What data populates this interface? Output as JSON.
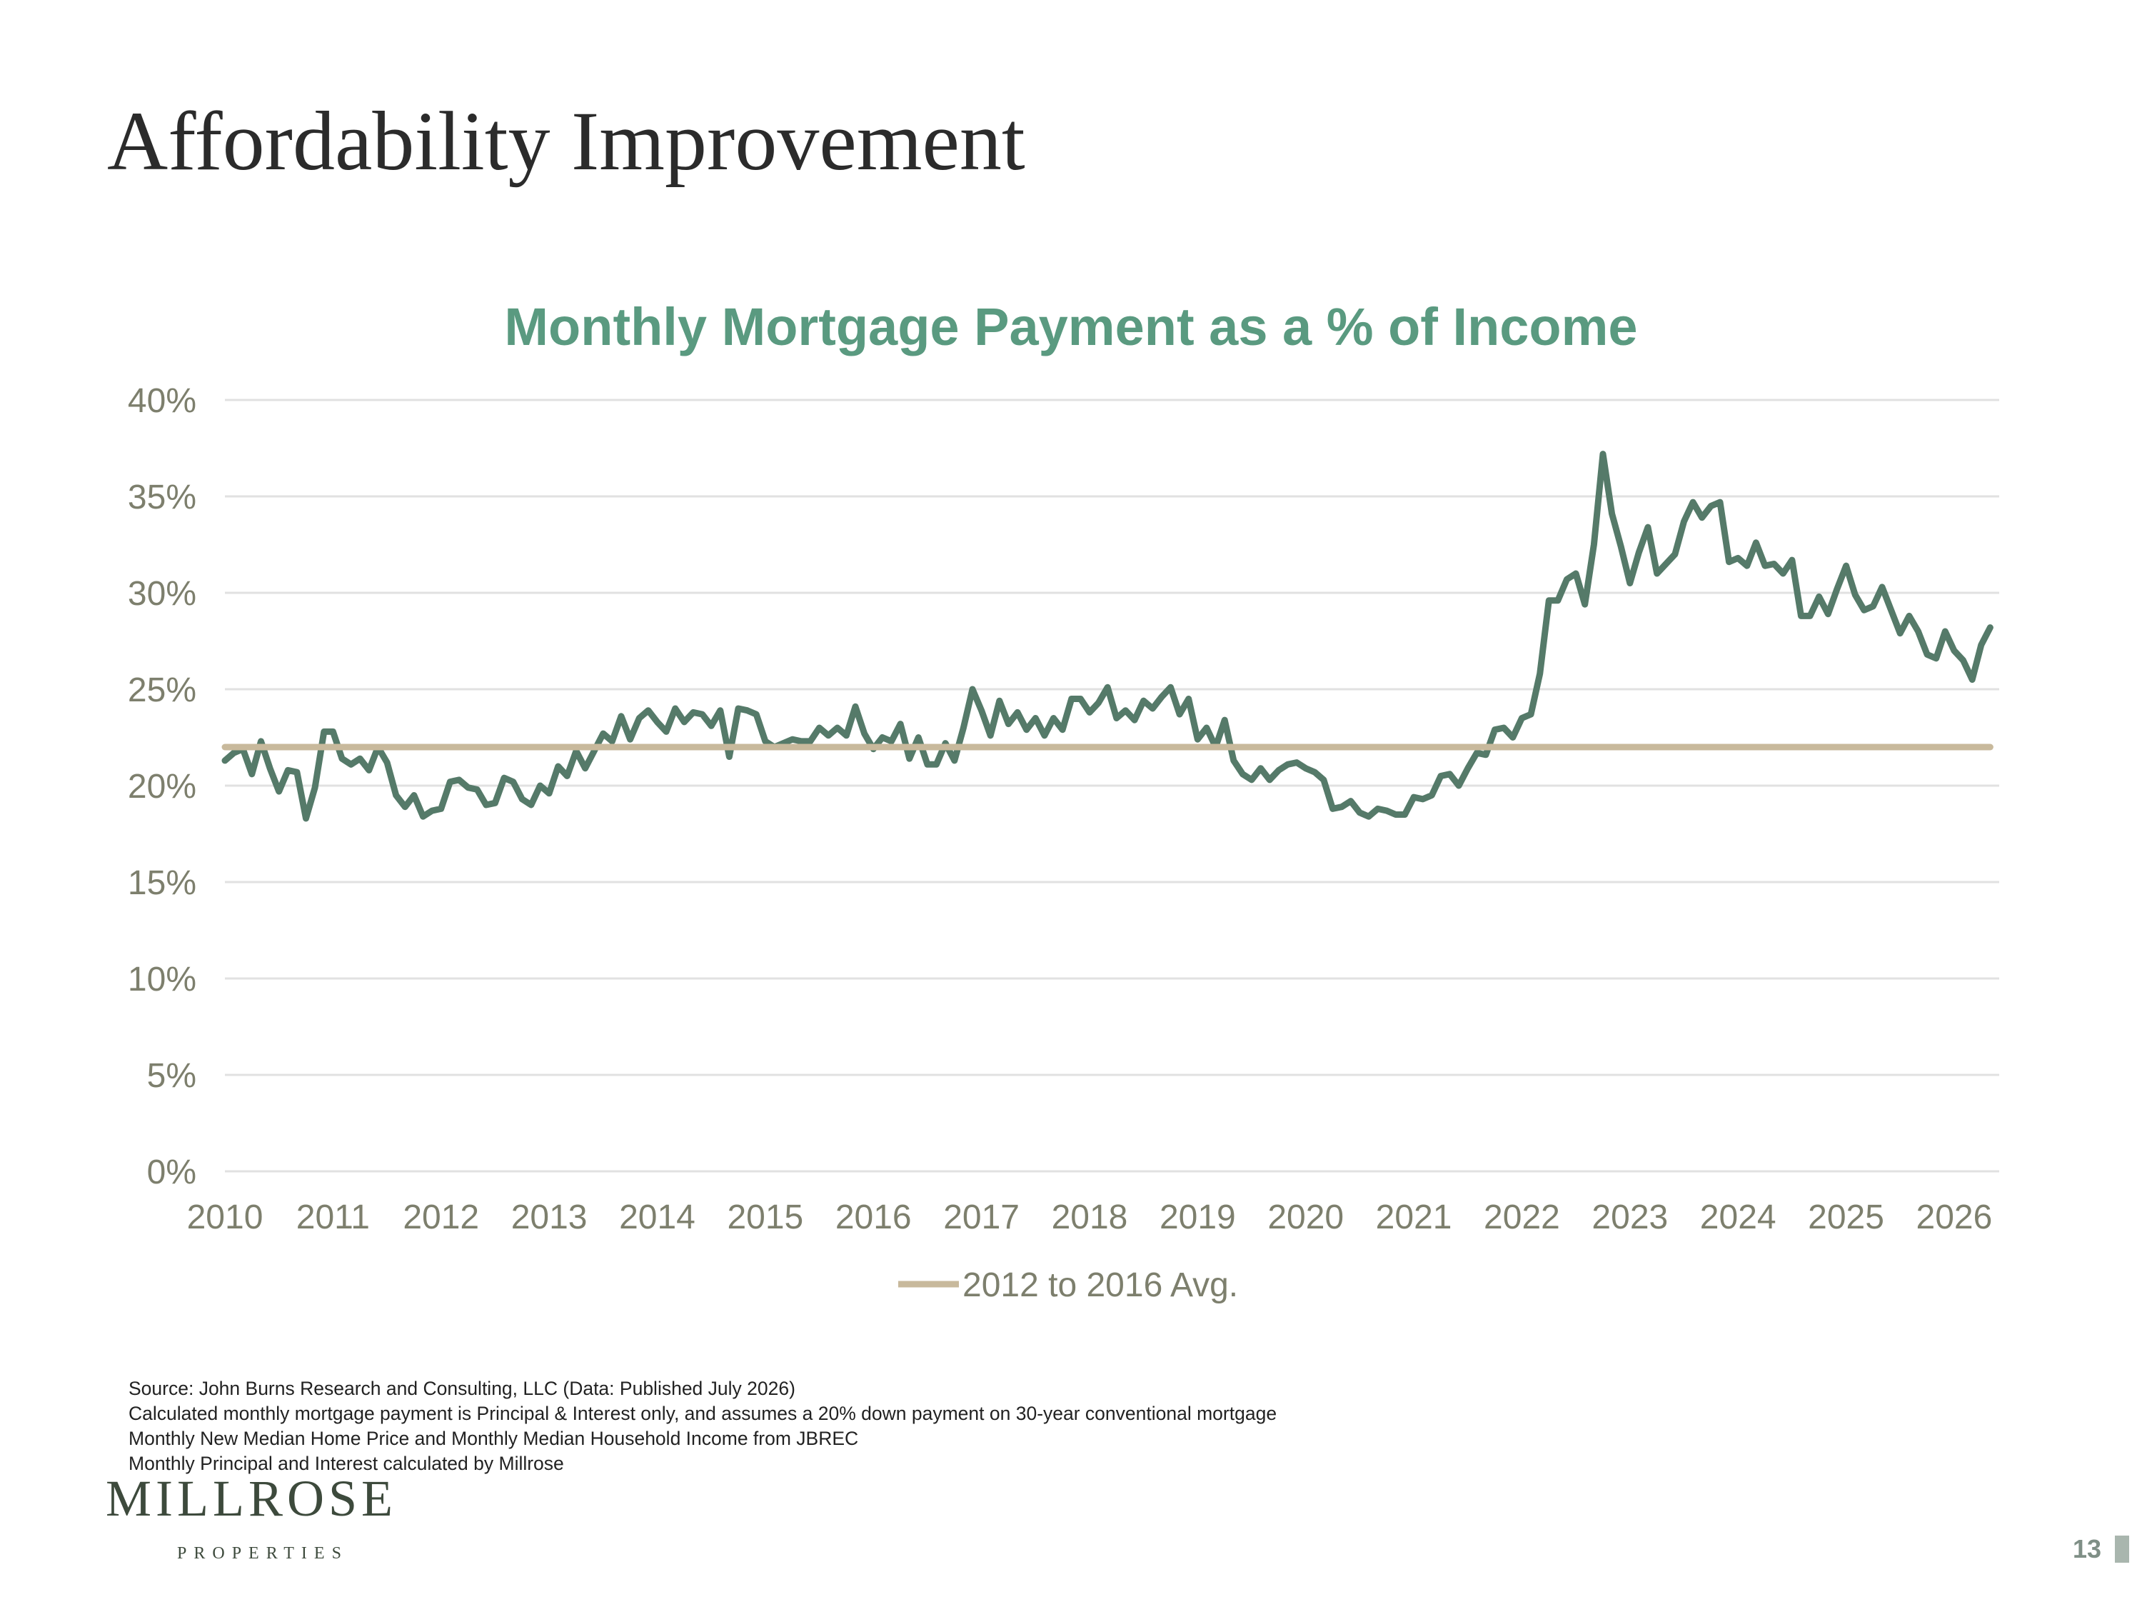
{
  "slide": {
    "title": "Affordability Improvement",
    "page_number": "13"
  },
  "notes": [
    "Source: John Burns Research and Consulting, LLC (Data: Published July 2026)",
    "Calculated monthly mortgage payment is Principal & Interest only, and assumes a 20% down payment on 30-year conventional mortgage",
    "Monthly New Median Home Price and Monthly Median Household Income from JBREC",
    "Monthly Principal and Interest calculated by Millrose"
  ],
  "logo": {
    "main": "MILLROSE",
    "sub": "PROPERTIES"
  },
  "colors": {
    "series_line": "#557a69",
    "avg_line": "#c8b99c",
    "title": "#5a9a80",
    "gridline": "#e1e1e1",
    "axis_text": "#7d7f6d"
  },
  "chart_data": {
    "type": "line",
    "title": "Monthly Mortgage Payment as a % of Income",
    "xlabel": "",
    "ylabel": "",
    "ylim": [
      0,
      40
    ],
    "xlim": [
      "2010-01",
      "2026-06"
    ],
    "y_ticks": [
      "0%",
      "5%",
      "10%",
      "15%",
      "20%",
      "25%",
      "30%",
      "35%",
      "40%"
    ],
    "x_ticks": [
      "2010",
      "2011",
      "2012",
      "2013",
      "2014",
      "2015",
      "2016",
      "2017",
      "2018",
      "2019",
      "2020",
      "2021",
      "2022",
      "2023",
      "2024",
      "2025",
      "2026"
    ],
    "grid": true,
    "legend_position": "bottom",
    "series": [
      {
        "name": "",
        "points": [
          [
            "2010-01",
            21.3
          ],
          [
            "2010-02",
            21.7
          ],
          [
            "2010-03",
            21.9
          ],
          [
            "2010-04",
            20.6
          ],
          [
            "2010-05",
            22.3
          ],
          [
            "2010-06",
            20.9
          ],
          [
            "2010-07",
            19.7
          ],
          [
            "2010-08",
            20.8
          ],
          [
            "2010-09",
            20.7
          ],
          [
            "2010-10",
            18.3
          ],
          [
            "2010-11",
            19.9
          ],
          [
            "2010-12",
            22.8
          ],
          [
            "2011-01",
            22.8
          ],
          [
            "2011-02",
            21.4
          ],
          [
            "2011-03",
            21.1
          ],
          [
            "2011-04",
            21.4
          ],
          [
            "2011-05",
            20.8
          ],
          [
            "2011-06",
            22.0
          ],
          [
            "2011-07",
            21.2
          ],
          [
            "2011-08",
            19.5
          ],
          [
            "2011-09",
            18.9
          ],
          [
            "2011-10",
            19.5
          ],
          [
            "2011-11",
            18.4
          ],
          [
            "2011-12",
            18.7
          ],
          [
            "2012-01",
            18.8
          ],
          [
            "2012-02",
            20.2
          ],
          [
            "2012-03",
            20.3
          ],
          [
            "2012-04",
            19.9
          ],
          [
            "2012-05",
            19.8
          ],
          [
            "2012-06",
            19.0
          ],
          [
            "2012-07",
            19.1
          ],
          [
            "2012-08",
            20.4
          ],
          [
            "2012-09",
            20.2
          ],
          [
            "2012-10",
            19.3
          ],
          [
            "2012-11",
            19.0
          ],
          [
            "2012-12",
            20.0
          ],
          [
            "2013-01",
            19.6
          ],
          [
            "2013-02",
            21.0
          ],
          [
            "2013-03",
            20.5
          ],
          [
            "2013-04",
            21.8
          ],
          [
            "2013-05",
            20.9
          ],
          [
            "2013-06",
            21.8
          ],
          [
            "2013-07",
            22.7
          ],
          [
            "2013-08",
            22.3
          ],
          [
            "2013-09",
            23.6
          ],
          [
            "2013-10",
            22.4
          ],
          [
            "2013-11",
            23.5
          ],
          [
            "2013-12",
            23.9
          ],
          [
            "2014-01",
            23.3
          ],
          [
            "2014-02",
            22.8
          ],
          [
            "2014-03",
            24.0
          ],
          [
            "2014-04",
            23.3
          ],
          [
            "2014-05",
            23.8
          ],
          [
            "2014-06",
            23.7
          ],
          [
            "2014-07",
            23.1
          ],
          [
            "2014-08",
            23.9
          ],
          [
            "2014-09",
            21.5
          ],
          [
            "2014-10",
            24.0
          ],
          [
            "2014-11",
            23.9
          ],
          [
            "2014-12",
            23.7
          ],
          [
            "2015-01",
            22.3
          ],
          [
            "2015-02",
            22.0
          ],
          [
            "2015-03",
            22.2
          ],
          [
            "2015-04",
            22.4
          ],
          [
            "2015-05",
            22.3
          ],
          [
            "2015-06",
            22.3
          ],
          [
            "2015-07",
            23.0
          ],
          [
            "2015-08",
            22.6
          ],
          [
            "2015-09",
            23.0
          ],
          [
            "2015-10",
            22.6
          ],
          [
            "2015-11",
            24.1
          ],
          [
            "2015-12",
            22.7
          ],
          [
            "2016-01",
            21.9
          ],
          [
            "2016-02",
            22.5
          ],
          [
            "2016-03",
            22.3
          ],
          [
            "2016-04",
            23.2
          ],
          [
            "2016-05",
            21.4
          ],
          [
            "2016-06",
            22.5
          ],
          [
            "2016-07",
            21.1
          ],
          [
            "2016-08",
            21.1
          ],
          [
            "2016-09",
            22.2
          ],
          [
            "2016-10",
            21.3
          ],
          [
            "2016-11",
            23.0
          ],
          [
            "2016-12",
            25.0
          ],
          [
            "2017-01",
            23.9
          ],
          [
            "2017-02",
            22.6
          ],
          [
            "2017-03",
            24.4
          ],
          [
            "2017-04",
            23.2
          ],
          [
            "2017-05",
            23.8
          ],
          [
            "2017-06",
            22.9
          ],
          [
            "2017-07",
            23.5
          ],
          [
            "2017-08",
            22.6
          ],
          [
            "2017-09",
            23.5
          ],
          [
            "2017-10",
            22.9
          ],
          [
            "2017-11",
            24.5
          ],
          [
            "2017-12",
            24.5
          ],
          [
            "2018-01",
            23.8
          ],
          [
            "2018-02",
            24.3
          ],
          [
            "2018-03",
            25.1
          ],
          [
            "2018-04",
            23.5
          ],
          [
            "2018-05",
            23.9
          ],
          [
            "2018-06",
            23.4
          ],
          [
            "2018-07",
            24.4
          ],
          [
            "2018-08",
            24.0
          ],
          [
            "2018-09",
            24.6
          ],
          [
            "2018-10",
            25.1
          ],
          [
            "2018-11",
            23.7
          ],
          [
            "2018-12",
            24.5
          ],
          [
            "2019-01",
            22.4
          ],
          [
            "2019-02",
            23.0
          ],
          [
            "2019-03",
            22.0
          ],
          [
            "2019-04",
            23.4
          ],
          [
            "2019-05",
            21.3
          ],
          [
            "2019-06",
            20.6
          ],
          [
            "2019-07",
            20.3
          ],
          [
            "2019-08",
            20.9
          ],
          [
            "2019-09",
            20.3
          ],
          [
            "2019-10",
            20.8
          ],
          [
            "2019-11",
            21.1
          ],
          [
            "2019-12",
            21.2
          ],
          [
            "2020-01",
            20.9
          ],
          [
            "2020-02",
            20.7
          ],
          [
            "2020-03",
            20.3
          ],
          [
            "2020-04",
            18.8
          ],
          [
            "2020-05",
            18.9
          ],
          [
            "2020-06",
            19.2
          ],
          [
            "2020-07",
            18.6
          ],
          [
            "2020-08",
            18.4
          ],
          [
            "2020-09",
            18.8
          ],
          [
            "2020-10",
            18.7
          ],
          [
            "2020-11",
            18.5
          ],
          [
            "2020-12",
            18.5
          ],
          [
            "2021-01",
            19.4
          ],
          [
            "2021-02",
            19.3
          ],
          [
            "2021-03",
            19.5
          ],
          [
            "2021-04",
            20.5
          ],
          [
            "2021-05",
            20.6
          ],
          [
            "2021-06",
            20.0
          ],
          [
            "2021-07",
            20.9
          ],
          [
            "2021-08",
            21.7
          ],
          [
            "2021-09",
            21.6
          ],
          [
            "2021-10",
            22.9
          ],
          [
            "2021-11",
            23.0
          ],
          [
            "2021-12",
            22.5
          ],
          [
            "2022-01",
            23.5
          ],
          [
            "2022-02",
            23.7
          ],
          [
            "2022-03",
            25.8
          ],
          [
            "2022-04",
            29.6
          ],
          [
            "2022-05",
            29.6
          ],
          [
            "2022-06",
            30.7
          ],
          [
            "2022-07",
            31.0
          ],
          [
            "2022-08",
            29.4
          ],
          [
            "2022-09",
            32.5
          ],
          [
            "2022-10",
            37.2
          ],
          [
            "2022-11",
            34.1
          ],
          [
            "2022-12",
            32.4
          ],
          [
            "2023-01",
            30.5
          ],
          [
            "2023-02",
            32.1
          ],
          [
            "2023-03",
            33.4
          ],
          [
            "2023-04",
            31.0
          ],
          [
            "2023-05",
            31.5
          ],
          [
            "2023-06",
            32.0
          ],
          [
            "2023-07",
            33.7
          ],
          [
            "2023-08",
            34.7
          ],
          [
            "2023-09",
            33.9
          ],
          [
            "2023-10",
            34.5
          ],
          [
            "2023-11",
            34.7
          ],
          [
            "2023-12",
            31.6
          ],
          [
            "2024-01",
            31.8
          ],
          [
            "2024-02",
            31.4
          ],
          [
            "2024-03",
            32.6
          ],
          [
            "2024-04",
            31.4
          ],
          [
            "2024-05",
            31.5
          ],
          [
            "2024-06",
            31.0
          ],
          [
            "2024-07",
            31.7
          ],
          [
            "2024-08",
            28.8
          ],
          [
            "2024-09",
            28.8
          ],
          [
            "2024-10",
            29.8
          ],
          [
            "2024-11",
            28.9
          ],
          [
            "2024-12",
            30.2
          ],
          [
            "2025-01",
            31.4
          ],
          [
            "2025-02",
            29.9
          ],
          [
            "2025-03",
            29.1
          ],
          [
            "2025-04",
            29.3
          ],
          [
            "2025-05",
            30.3
          ],
          [
            "2025-06",
            29.1
          ],
          [
            "2025-07",
            27.9
          ],
          [
            "2025-08",
            28.8
          ],
          [
            "2025-09",
            28.0
          ],
          [
            "2025-10",
            26.8
          ],
          [
            "2025-11",
            26.6
          ],
          [
            "2025-12",
            28.0
          ],
          [
            "2026-01",
            27.0
          ],
          [
            "2026-02",
            26.5
          ],
          [
            "2026-03",
            25.5
          ],
          [
            "2026-04",
            27.3
          ],
          [
            "2026-05",
            28.2
          ]
        ]
      },
      {
        "name": "2012 to 2016 Avg.",
        "points": [
          [
            "2010-01",
            22.0
          ],
          [
            "2026-05",
            22.0
          ]
        ]
      }
    ]
  }
}
